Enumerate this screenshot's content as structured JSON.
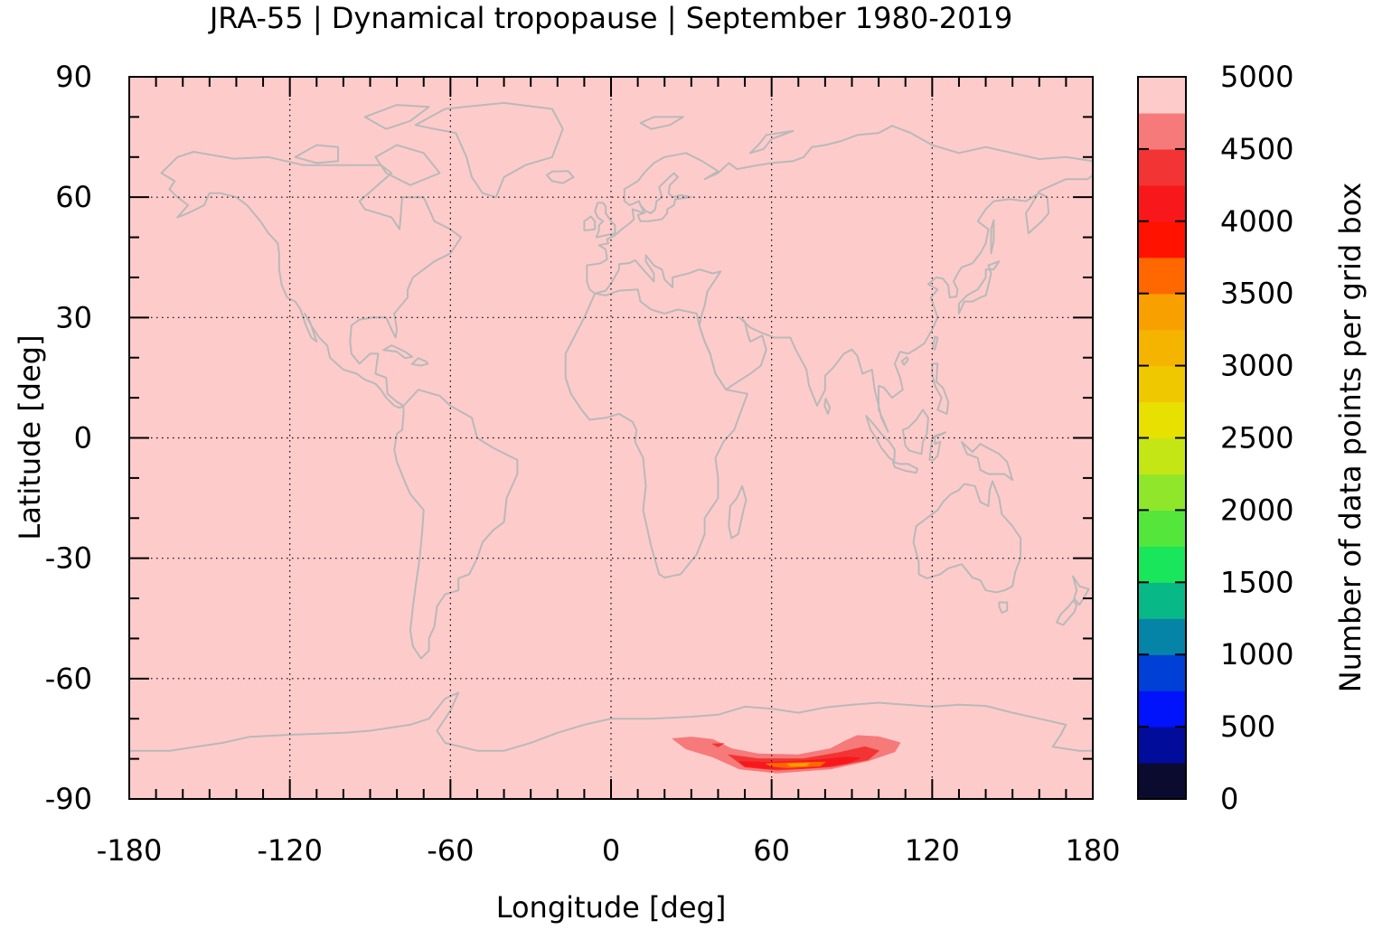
{
  "title": "JRA-55 | Dynamical tropopause | September 1980-2019",
  "colors": {
    "background_field": "#fecbcb",
    "coastline": "#b9b9b9",
    "grid": "#000000"
  },
  "chart_data": {
    "type": "heatmap",
    "title": "JRA-55 | Dynamical tropopause | September 1980-2019",
    "xlabel": "Longitude [deg]",
    "ylabel": "Latitude [deg]",
    "xlim": [
      -180,
      180
    ],
    "ylim": [
      -90,
      90
    ],
    "x_ticks": [
      "-180",
      "-120",
      "-60",
      "0",
      "60",
      "120",
      "180"
    ],
    "y_ticks": [
      "90",
      "60",
      "30",
      "0",
      "-30",
      "-60",
      "-90"
    ],
    "x_tick_values": [
      -180,
      -120,
      -60,
      0,
      60,
      120,
      180
    ],
    "y_tick_values": [
      90,
      60,
      30,
      0,
      -30,
      -60,
      -90
    ],
    "grid": true,
    "background_value": 5000,
    "colorbar": {
      "label": "Number of data points per grid box",
      "ticks": [
        "0",
        "500",
        "1000",
        "1500",
        "2000",
        "2500",
        "3000",
        "3500",
        "4000",
        "4500",
        "5000"
      ],
      "tick_values": [
        0,
        500,
        1000,
        1500,
        2000,
        2500,
        3000,
        3500,
        4000,
        4500,
        5000
      ],
      "levels": [
        0,
        250,
        500,
        750,
        1000,
        1250,
        1500,
        1750,
        2000,
        2250,
        2500,
        2750,
        3000,
        3250,
        3500,
        3750,
        4000,
        4250,
        4500,
        4750,
        5000
      ],
      "colors": [
        "#0b0b30",
        "#020c9a",
        "#0013fb",
        "#0040d6",
        "#0584a8",
        "#08b987",
        "#19e65a",
        "#55e63c",
        "#8fe62a",
        "#c4e614",
        "#e8e000",
        "#f0c800",
        "#f5b400",
        "#f8a000",
        "#ff6700",
        "#ff1200",
        "#f8181c",
        "#f23434",
        "#f67a7a",
        "#fecbcb"
      ]
    },
    "contours": [
      {
        "level": 4750,
        "color": "#f67a7a",
        "points": [
          [
            23,
            -75
          ],
          [
            30,
            -74.6
          ],
          [
            38,
            -75.2
          ],
          [
            45,
            -77.5
          ],
          [
            55,
            -78.8
          ],
          [
            70,
            -79
          ],
          [
            82,
            -77.5
          ],
          [
            88,
            -75.4
          ],
          [
            92,
            -74.2
          ],
          [
            100,
            -74.5
          ],
          [
            108,
            -76
          ],
          [
            106,
            -78.2
          ],
          [
            96,
            -80.5
          ],
          [
            82,
            -82.5
          ],
          [
            62,
            -83.5
          ],
          [
            48,
            -82.5
          ],
          [
            38,
            -79.5
          ],
          [
            28,
            -77.5
          ]
        ]
      },
      {
        "level": 4500,
        "color": "#f23434",
        "points": [
          [
            38,
            -76.3
          ],
          [
            42,
            -76.2
          ],
          [
            40,
            -77
          ]
        ]
      },
      {
        "level": 4500,
        "color": "#f23434",
        "points": [
          [
            44,
            -79
          ],
          [
            55,
            -80
          ],
          [
            72,
            -80
          ],
          [
            85,
            -78.5
          ],
          [
            95,
            -77
          ],
          [
            100,
            -78
          ],
          [
            96,
            -80.2
          ],
          [
            82,
            -82
          ],
          [
            62,
            -82.8
          ],
          [
            50,
            -82
          ]
        ]
      },
      {
        "level": 4250,
        "color": "#f8181c",
        "points": [
          [
            48,
            -80.7
          ],
          [
            60,
            -80.9
          ],
          [
            75,
            -80.4
          ],
          [
            88,
            -79.6
          ],
          [
            93,
            -79.8
          ],
          [
            88,
            -81.2
          ],
          [
            74,
            -82.3
          ],
          [
            58,
            -82.4
          ],
          [
            50,
            -81.8
          ]
        ]
      },
      {
        "level": 3750,
        "color": "#ff6700",
        "points": [
          [
            58,
            -81.2
          ],
          [
            68,
            -81
          ],
          [
            80,
            -80.8
          ],
          [
            78,
            -81.8
          ],
          [
            66,
            -82.2
          ],
          [
            60,
            -81.9
          ]
        ]
      },
      {
        "level": 3500,
        "color": "#f8a000",
        "points": [
          [
            66,
            -81.3
          ],
          [
            74,
            -81.1
          ],
          [
            73,
            -81.7
          ],
          [
            67,
            -81.8
          ]
        ]
      }
    ]
  }
}
